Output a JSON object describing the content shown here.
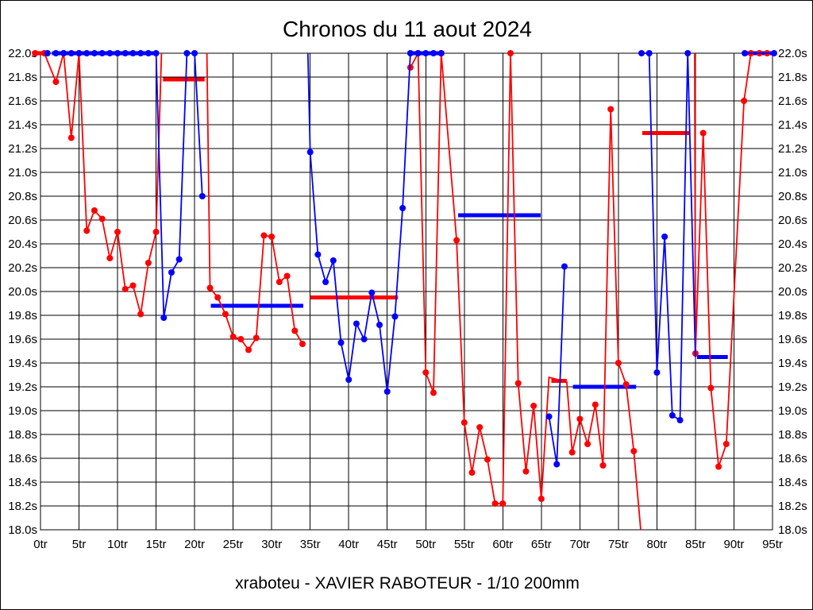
{
  "title": "Chronos du 11 aout 2024",
  "subtitle": "xraboteu - XAVIER RABOTEUR - 1/10 200mm",
  "chart_data": {
    "type": "line",
    "title": "Chronos du 11 aout 2024",
    "subtitle": "xraboteu - XAVIER RABOTEUR - 1/10 200mm",
    "grid": true,
    "legend": "none",
    "x_axis": {
      "unit": "tr",
      "min": 0,
      "max": 95,
      "tick_step": 5,
      "tick_labels": [
        "0tr",
        "5tr",
        "10tr",
        "15tr",
        "20tr",
        "25tr",
        "30tr",
        "35tr",
        "40tr",
        "45tr",
        "50tr",
        "55tr",
        "60tr",
        "65tr",
        "70tr",
        "75tr",
        "80tr",
        "85tr",
        "90tr",
        "95tr"
      ]
    },
    "y_axis": {
      "unit": "s",
      "min": 18.0,
      "max": 22.0,
      "tick_step": 0.2,
      "tick_labels": [
        "22.0s",
        "21.8s",
        "21.6s",
        "21.4s",
        "21.2s",
        "21.0s",
        "20.8s",
        "20.6s",
        "20.4s",
        "20.2s",
        "20.0s",
        "19.8s",
        "19.6s",
        "19.4s",
        "19.2s",
        "19.0s",
        "18.8s",
        "18.6s",
        "18.4s",
        "18.2s",
        "18.0s"
      ],
      "labels_on_both_sides": true
    },
    "colors": {
      "red": "#ff0000",
      "blue": "#0000ff"
    },
    "series": [
      {
        "name": "red-series",
        "color": "#ff0000",
        "runs": [
          [
            [
              -0.7,
              22
            ],
            [
              0.5,
              22
            ],
            [
              2,
              21.76
            ],
            [
              3,
              22
            ],
            [
              4,
              21.29
            ],
            [
              5,
              22
            ],
            [
              6,
              20.51
            ],
            [
              7,
              20.68
            ],
            [
              8,
              20.61
            ],
            [
              9,
              20.28
            ],
            [
              10,
              20.5
            ],
            [
              11,
              20.02
            ],
            [
              12,
              20.05
            ],
            [
              13,
              19.81
            ],
            [
              14,
              20.24
            ],
            [
              15,
              20.5
            ],
            [
              15.7,
              22,
              0
            ]
          ],
          [
            [
              21.6,
              22,
              0
            ],
            [
              22,
              20.03
            ],
            [
              23,
              19.95
            ],
            [
              24,
              19.81
            ],
            [
              25,
              19.62
            ],
            [
              26,
              19.6
            ],
            [
              27,
              19.51
            ],
            [
              28,
              19.61
            ],
            [
              29,
              20.47
            ],
            [
              30,
              20.46
            ],
            [
              31,
              20.08
            ],
            [
              32,
              20.13
            ],
            [
              33,
              19.67
            ],
            [
              34,
              19.56
            ]
          ],
          [
            [
              48,
              21.88
            ],
            [
              49,
              22
            ],
            [
              50,
              19.32
            ],
            [
              51,
              19.15
            ],
            [
              52,
              22
            ],
            [
              54,
              20.43
            ],
            [
              55,
              18.9
            ],
            [
              56,
              18.48
            ],
            [
              57,
              18.86
            ],
            [
              58,
              18.59
            ],
            [
              59,
              18.22
            ],
            [
              60,
              18.22
            ],
            [
              61,
              22
            ],
            [
              62,
              19.23
            ],
            [
              63,
              18.49
            ],
            [
              64,
              19.04
            ],
            [
              65,
              18.26
            ],
            [
              66,
              19.28,
              0
            ],
            [
              68.3,
              19.24,
              0
            ],
            [
              69,
              18.65
            ],
            [
              70,
              18.93
            ],
            [
              71,
              18.72
            ],
            [
              72,
              19.05
            ],
            [
              73,
              18.54
            ],
            [
              74,
              21.53
            ],
            [
              75,
              19.4
            ],
            [
              76,
              19.22
            ],
            [
              77,
              18.66
            ],
            [
              77.9,
              18.0,
              0
            ]
          ],
          [
            [
              84.9,
              22,
              0
            ],
            [
              85,
              19.48
            ],
            [
              86,
              21.33
            ],
            [
              87,
              19.19
            ],
            [
              88,
              18.53
            ],
            [
              89,
              18.72
            ],
            [
              91.3,
              21.6
            ],
            [
              92.2,
              22
            ],
            [
              93.3,
              22
            ],
            [
              94.3,
              22
            ]
          ]
        ]
      },
      {
        "name": "blue-series",
        "color": "#0000ff",
        "runs": [
          [
            [
              0.9,
              22
            ]
          ],
          [
            [
              2,
              22
            ],
            [
              3,
              22
            ],
            [
              4,
              22
            ],
            [
              5,
              22
            ],
            [
              6,
              22
            ],
            [
              7,
              22
            ],
            [
              8,
              22
            ],
            [
              9,
              22
            ],
            [
              10,
              22
            ],
            [
              11,
              22
            ],
            [
              12,
              22
            ],
            [
              13,
              22
            ],
            [
              14,
              22
            ],
            [
              15,
              22
            ],
            [
              16,
              19.78
            ],
            [
              17,
              20.16
            ],
            [
              18,
              20.27
            ],
            [
              19,
              22
            ],
            [
              20,
              22
            ],
            [
              21,
              20.8
            ]
          ],
          [
            [
              34.7,
              22,
              0
            ],
            [
              35,
              21.17
            ],
            [
              36,
              20.31
            ],
            [
              37,
              20.08
            ],
            [
              38,
              20.26
            ],
            [
              39,
              19.57
            ],
            [
              40,
              19.26
            ],
            [
              41,
              19.73
            ],
            [
              42,
              19.6
            ],
            [
              43,
              19.99
            ],
            [
              44,
              19.72
            ],
            [
              45,
              19.16
            ],
            [
              46,
              19.79
            ],
            [
              47,
              20.7
            ],
            [
              48,
              22
            ],
            [
              49,
              22
            ],
            [
              50,
              22
            ],
            [
              51,
              22
            ],
            [
              52,
              22
            ]
          ],
          [
            [
              66,
              18.95
            ],
            [
              67,
              18.55
            ],
            [
              68,
              20.21
            ]
          ],
          [
            [
              78,
              22
            ],
            [
              79,
              22
            ],
            [
              80,
              19.32
            ],
            [
              81,
              20.46
            ],
            [
              82,
              18.96
            ],
            [
              83,
              18.92
            ],
            [
              84,
              22
            ],
            [
              85,
              19.45,
              0
            ]
          ],
          [
            [
              91.4,
              22
            ],
            [
              95.2,
              22
            ]
          ]
        ]
      }
    ],
    "mean_segments": [
      {
        "color": "red",
        "from": -1.0,
        "to": 0.8,
        "value": 22.0
      },
      {
        "color": "blue",
        "from": 1.5,
        "to": 15.2,
        "value": 22.0
      },
      {
        "color": "red",
        "from": 15.9,
        "to": 21.3,
        "value": 21.78
      },
      {
        "color": "blue",
        "from": 22.1,
        "to": 34.1,
        "value": 19.88
      },
      {
        "color": "red",
        "from": 35.0,
        "to": 46.4,
        "value": 19.95
      },
      {
        "color": "blue",
        "from": 48.2,
        "to": 52.4,
        "value": 22.0
      },
      {
        "color": "blue",
        "from": 54.2,
        "to": 64.9,
        "value": 20.64
      },
      {
        "color": "red",
        "from": 66.3,
        "to": 68.3,
        "value": 19.25
      },
      {
        "color": "blue",
        "from": 69.1,
        "to": 77.3,
        "value": 19.2
      },
      {
        "color": "red",
        "from": 78.1,
        "to": 84.3,
        "value": 21.33
      },
      {
        "color": "blue",
        "from": 85.2,
        "to": 89.2,
        "value": 19.45
      },
      {
        "color": "blue",
        "from": 91.3,
        "to": 95.3,
        "value": 22.0
      }
    ]
  }
}
